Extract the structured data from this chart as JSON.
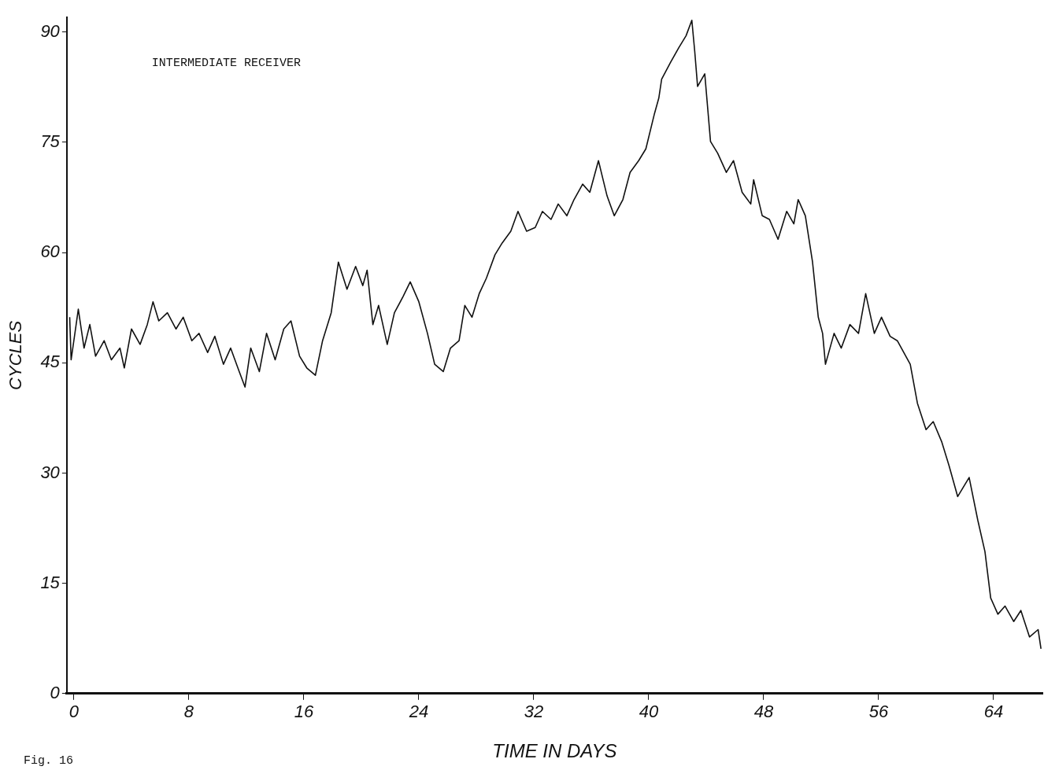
{
  "chart_data": {
    "type": "line",
    "title": "INTERMEDIATE RECEIVER",
    "xlabel": "TIME IN DAYS",
    "ylabel": "CYCLES",
    "annotations": [
      "Fig. 16"
    ],
    "xlim": [
      -0.5,
      67.4
    ],
    "xticks": [
      0,
      8,
      16,
      24,
      32,
      40,
      48,
      56,
      64
    ],
    "ylim": [
      0,
      92
    ],
    "yticks": [
      0,
      15,
      30,
      45,
      60,
      75,
      90
    ],
    "grid": false,
    "legend": false,
    "marker": "none",
    "line_style": "solid",
    "series": [
      {
        "color": "#111111",
        "x": [
          -0.3,
          -0.2,
          0.3,
          0.7,
          1.1,
          1.5,
          2.1,
          2.6,
          3.2,
          3.5,
          4.0,
          4.6,
          5.1,
          5.5,
          5.9,
          6.5,
          7.1,
          7.6,
          8.2,
          8.7,
          9.3,
          9.8,
          10.4,
          10.9,
          11.5,
          11.9,
          12.3,
          12.9,
          13.4,
          14.0,
          14.6,
          15.1,
          15.7,
          16.2,
          16.8,
          17.3,
          17.9,
          18.4,
          19.0,
          19.6,
          20.1,
          20.4,
          20.8,
          21.2,
          21.8,
          22.3,
          22.9,
          23.4,
          24.0,
          24.6,
          25.1,
          25.7,
          26.2,
          26.8,
          27.2,
          27.7,
          28.2,
          28.7,
          29.3,
          29.8,
          30.4,
          30.9,
          31.5,
          32.1,
          32.6,
          33.2,
          33.7,
          34.3,
          34.8,
          35.4,
          35.9,
          36.5,
          37.1,
          37.6,
          38.2,
          38.7,
          39.3,
          39.8,
          40.4,
          40.7,
          40.9,
          41.5,
          42.1,
          42.6,
          43.0,
          43.2,
          43.4,
          43.9,
          44.3,
          44.8,
          45.4,
          45.9,
          46.5,
          47.1,
          47.3,
          47.9,
          48.4,
          49.0,
          49.6,
          50.1,
          50.4,
          50.9,
          51.4,
          51.8,
          52.1,
          52.3,
          52.9,
          53.4,
          54.0,
          54.6,
          55.1,
          55.7,
          56.2,
          56.8,
          57.3,
          58.2,
          58.7,
          59.3,
          59.8,
          60.4,
          60.9,
          61.5,
          62.3,
          62.9,
          63.4,
          63.8,
          64.3,
          64.8,
          65.4,
          65.9,
          66.5,
          67.1,
          67.3
        ],
        "values": [
          51.2,
          45.4,
          52.3,
          47,
          50.2,
          45.9,
          48,
          45.4,
          47,
          44.3,
          49.6,
          47.5,
          50.2,
          53.3,
          50.7,
          51.8,
          49.6,
          51.2,
          48,
          49,
          46.4,
          48.6,
          44.8,
          47,
          43.8,
          41.7,
          47,
          43.8,
          49,
          45.4,
          49.6,
          50.7,
          45.9,
          44.3,
          43.3,
          48,
          51.8,
          58.7,
          55,
          58.1,
          55.5,
          57.6,
          50.2,
          52.8,
          47.5,
          51.8,
          54,
          56,
          53.3,
          49,
          44.8,
          43.8,
          47,
          48,
          52.8,
          51.2,
          54.4,
          56.5,
          59.7,
          61.3,
          62.9,
          65.6,
          62.9,
          63.4,
          65.6,
          64.5,
          66.6,
          65,
          67.2,
          69.3,
          68.2,
          72.5,
          67.7,
          65,
          67.2,
          70.9,
          72.5,
          74.1,
          78.9,
          81,
          83.6,
          85.8,
          87.9,
          89.5,
          91.6,
          87.4,
          82.6,
          84.3,
          75.1,
          73.5,
          70.9,
          72.5,
          68.2,
          66.6,
          69.9,
          65,
          64.5,
          61.8,
          65.6,
          63.9,
          67.2,
          65,
          58.7,
          51.2,
          49,
          44.8,
          49,
          47,
          50.2,
          49,
          54.4,
          49,
          51.2,
          48.6,
          48,
          44.8,
          39.5,
          35.9,
          37,
          34.2,
          31,
          26.8,
          29.4,
          23.6,
          19.3,
          13,
          10.8,
          11.9,
          9.8,
          11.3,
          7.7,
          8.7,
          6.1
        ]
      }
    ]
  }
}
